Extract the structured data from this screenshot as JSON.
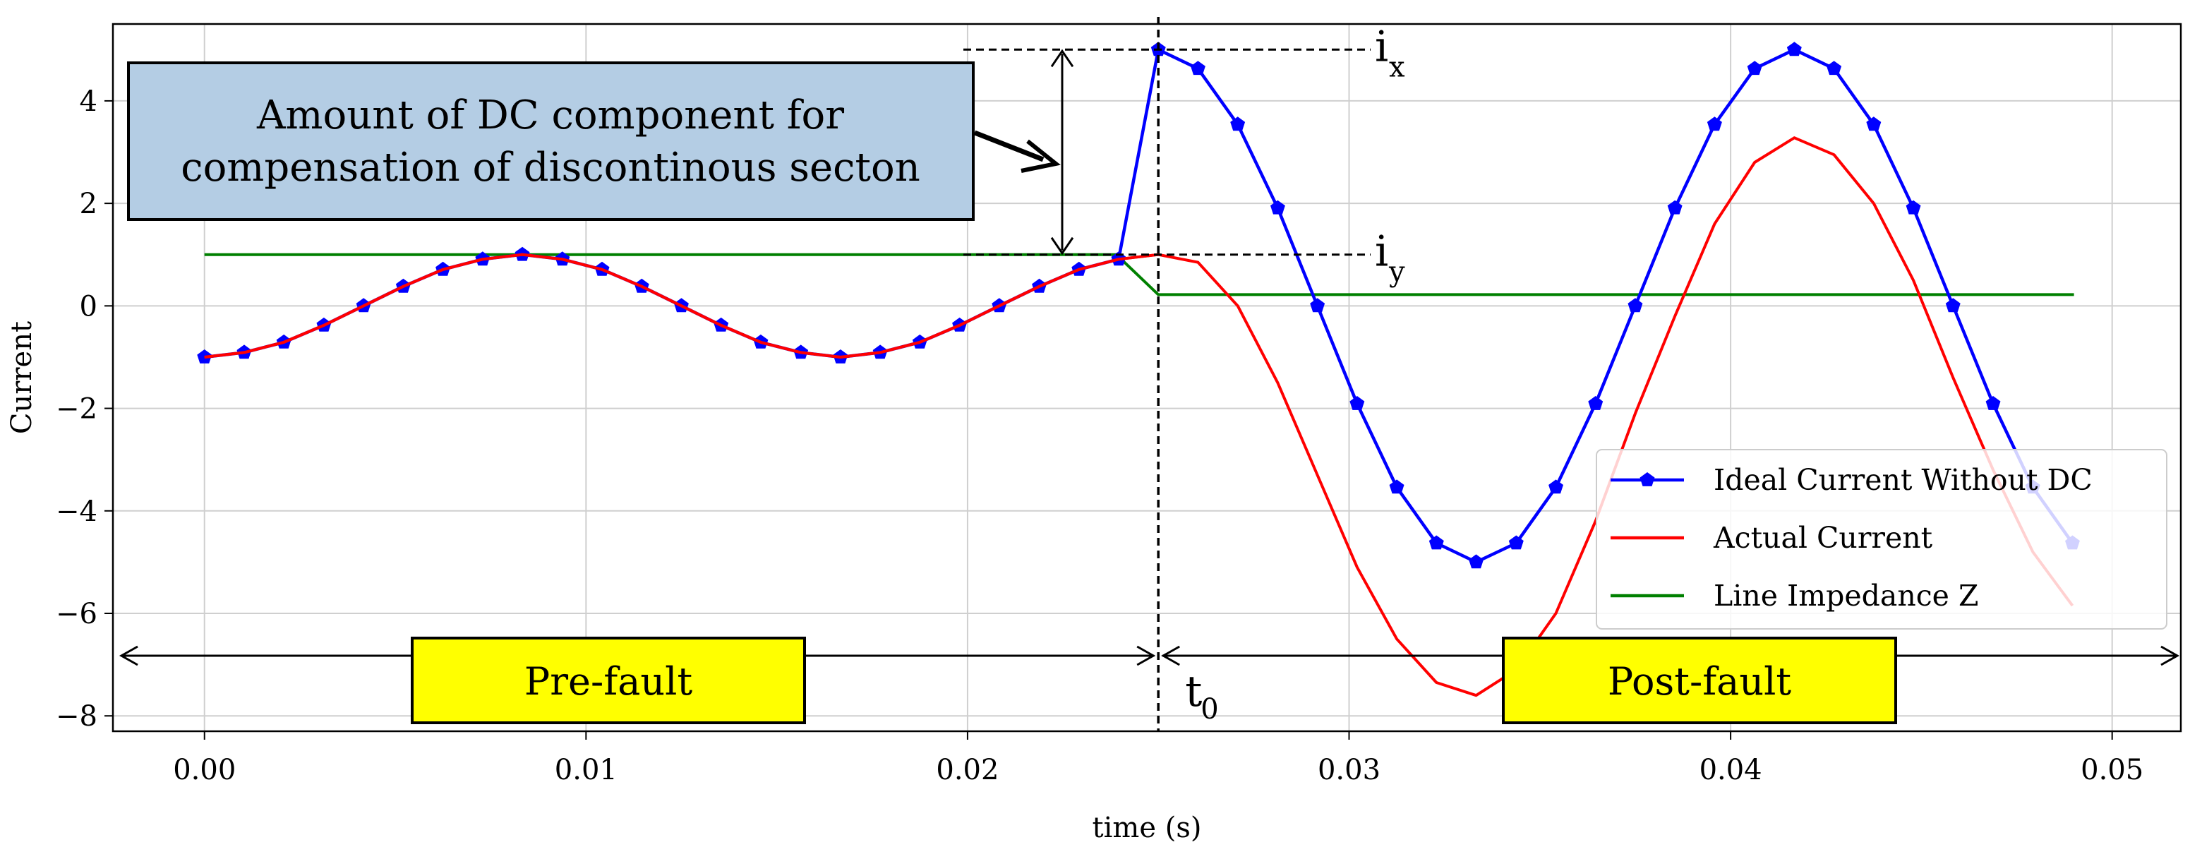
{
  "chart_data": {
    "type": "line",
    "xlabel": "time (s)",
    "ylabel": "Current",
    "xlim": [
      -0.0024,
      0.0518
    ],
    "ylim": [
      -8.3,
      5.5
    ],
    "xticks": [
      "0.00",
      "0.01",
      "0.02",
      "0.03",
      "0.04",
      "0.05"
    ],
    "xtick_values": [
      0,
      0.01,
      0.02,
      0.03,
      0.04,
      0.05
    ],
    "yticks": [
      "−8",
      "−6",
      "−4",
      "−2",
      "0",
      "2",
      "4"
    ],
    "ytick_values": [
      -8,
      -6,
      -4,
      -2,
      0,
      2,
      4
    ],
    "grid": true,
    "legend_position": "lower-right",
    "series": [
      {
        "name": "Ideal Current Without DC",
        "color": "#0000ff",
        "marker": "pentagon",
        "x": [
          0,
          0.00104,
          0.00208,
          0.00313,
          0.00417,
          0.00521,
          0.00625,
          0.00729,
          0.00833,
          0.00938,
          0.01042,
          0.01146,
          0.0125,
          0.01354,
          0.01458,
          0.01563,
          0.01667,
          0.01771,
          0.01875,
          0.01979,
          0.02083,
          0.02188,
          0.02292,
          0.02396,
          0.025,
          0.02604,
          0.02708,
          0.02813,
          0.02917,
          0.03021,
          0.03125,
          0.03229,
          0.03333,
          0.03438,
          0.03542,
          0.03646,
          0.0375,
          0.03854,
          0.03958,
          0.04063,
          0.04167,
          0.04271,
          0.04375,
          0.04479,
          0.04583,
          0.04688,
          0.04792,
          0.04896
        ],
        "y": [
          -1,
          -0.91,
          -0.71,
          -0.38,
          0,
          0.38,
          0.71,
          0.91,
          1,
          0.91,
          0.71,
          0.38,
          0,
          -0.38,
          -0.71,
          -0.91,
          -1,
          -0.91,
          -0.71,
          -0.38,
          0,
          0.38,
          0.71,
          0.91,
          5,
          4.63,
          3.54,
          1.91,
          0,
          -1.91,
          -3.54,
          -4.63,
          -5,
          -4.63,
          -3.54,
          -1.91,
          0,
          1.91,
          3.54,
          4.63,
          5,
          4.63,
          3.54,
          1.91,
          0,
          -1.91,
          -3.54,
          -4.63
        ]
      },
      {
        "name": "Actual Current",
        "color": "#ff0000",
        "x": [
          0,
          0.00104,
          0.00208,
          0.00313,
          0.00417,
          0.00521,
          0.00625,
          0.00729,
          0.00833,
          0.00938,
          0.01042,
          0.01146,
          0.0125,
          0.01354,
          0.01458,
          0.01563,
          0.01667,
          0.01771,
          0.01875,
          0.01979,
          0.02083,
          0.02188,
          0.02292,
          0.02396,
          0.025,
          0.02604,
          0.02708,
          0.02813,
          0.02917,
          0.03021,
          0.03125,
          0.03229,
          0.03333,
          0.03438,
          0.03542,
          0.03646,
          0.0375,
          0.03854,
          0.03958,
          0.04063,
          0.04167,
          0.04271,
          0.04375,
          0.04479,
          0.04583,
          0.04688,
          0.04792,
          0.04896
        ],
        "y": [
          -1,
          -0.91,
          -0.71,
          -0.38,
          0,
          0.38,
          0.71,
          0.91,
          1,
          0.91,
          0.71,
          0.38,
          0,
          -0.38,
          -0.71,
          -0.91,
          -1,
          -0.91,
          -0.71,
          -0.38,
          0,
          0.38,
          0.71,
          0.91,
          1,
          0.85,
          0,
          -1.5,
          -3.3,
          -5.1,
          -6.5,
          -7.35,
          -7.6,
          -7.1,
          -6.0,
          -4.2,
          -2.1,
          -0.2,
          1.6,
          2.8,
          3.28,
          2.95,
          2.0,
          0.5,
          -1.4,
          -3.2,
          -4.8,
          -5.85
        ]
      },
      {
        "name": "Line Impedance Z",
        "color": "#008000",
        "x": [
          0,
          0.0239,
          0.025,
          0.049
        ],
        "y": [
          1,
          1,
          0.22,
          0.22
        ]
      }
    ]
  },
  "annotations": {
    "dc_box_line1": "Amount of DC component for",
    "dc_box_line2": "compensation of discontinous secton",
    "ix_label": "i",
    "ix_sub": "x",
    "iy_label": "i",
    "iy_sub": "y",
    "t0_label": "t",
    "t0_sub": "0",
    "prefault_label": "Pre-fault",
    "postfault_label": "Post-fault",
    "fault_time": 0.025,
    "ix_value": 5,
    "iy_value": 1,
    "box_color": "#b4cde4",
    "phase_box_color": "#ffff00"
  }
}
